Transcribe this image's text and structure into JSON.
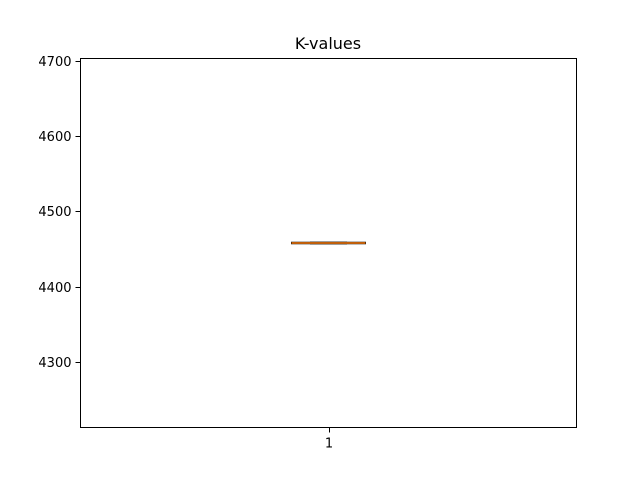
{
  "chart_data": {
    "type": "box",
    "title": "K-values",
    "xlabel": "",
    "ylabel": "",
    "categories": [
      "1"
    ],
    "ylim": [
      4213,
      4703
    ],
    "yticks": [
      4300,
      4400,
      4500,
      4600,
      4700
    ],
    "ytick_labels": [
      "4300",
      "4400",
      "4500",
      "4600",
      "4700"
    ],
    "boxes": [
      {
        "label": "1",
        "q1": 4457,
        "median": 4458,
        "q3": 4459,
        "whisker_low": 4457,
        "whisker_high": 4459
      }
    ],
    "box_color": "#000000",
    "median_color": "#ff7f0e"
  }
}
